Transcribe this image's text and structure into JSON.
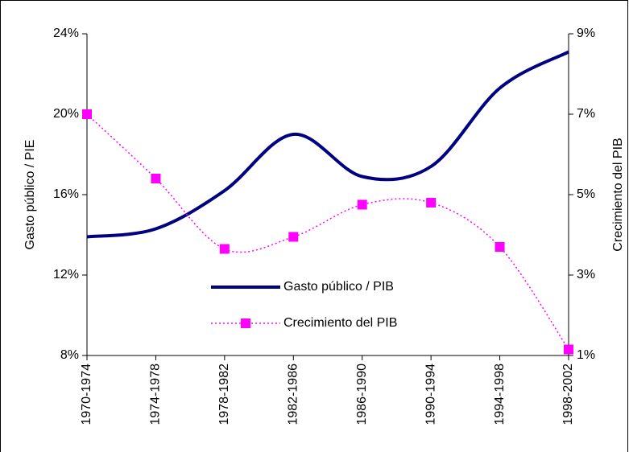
{
  "chart_data": {
    "type": "line",
    "categories": [
      "1970-1974",
      "1974-1978",
      "1978-1982",
      "1982-1986",
      "1986-1990",
      "1990-1994",
      "1994-1998",
      "1998-2002"
    ],
    "series": [
      {
        "name": "Gasto público / PIB",
        "color": "#000080",
        "values": [
          13.9,
          14.3,
          16.2,
          19.0,
          16.9,
          17.4,
          21.3,
          23.1
        ]
      },
      {
        "name": "Crecimiento del PIB",
        "color": "#ff00ff",
        "axis": "y2",
        "values": [
          7.0,
          5.4,
          3.65,
          3.95,
          4.75,
          4.8,
          3.7,
          1.15
        ]
      }
    ],
    "ylabel": "Gasto público / PIE",
    "y2label": "Crecimiento del PIB",
    "ylim": [
      8,
      24
    ],
    "yticks": [
      {
        "value": 8,
        "label": "8%"
      },
      {
        "value": 12,
        "label": "12%"
      },
      {
        "value": 16,
        "label": "16%"
      },
      {
        "value": 20,
        "label": "20%"
      },
      {
        "value": 24,
        "label": "24%"
      }
    ],
    "y2lim": [
      1,
      9
    ],
    "y2ticks": [
      {
        "value": 1,
        "label": "1%"
      },
      {
        "value": 3,
        "label": "3%"
      },
      {
        "value": 5,
        "label": "5%"
      },
      {
        "value": 7,
        "label": "7%"
      },
      {
        "value": 9,
        "label": "9%"
      }
    ],
    "grid": false
  }
}
